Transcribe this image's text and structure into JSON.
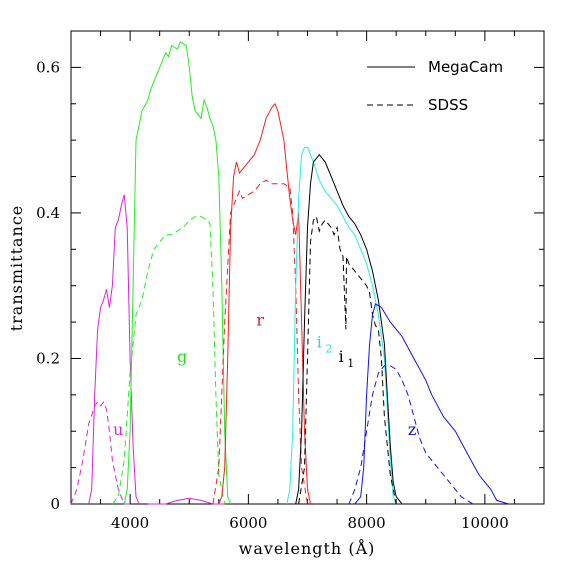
{
  "chart_data": {
    "type": "line",
    "xlabel": "wavelength (Å)",
    "ylabel": "transmittance",
    "xlim": [
      3000,
      11000
    ],
    "ylim": [
      0,
      0.65
    ],
    "xticks": [
      4000,
      6000,
      8000,
      10000
    ],
    "xtick_labels": [
      "4000",
      "6000",
      "8000",
      "10000"
    ],
    "yticks": [
      0,
      0.2,
      0.4,
      0.6
    ],
    "ytick_labels": [
      "0",
      "0.2",
      "0.4",
      "0.6"
    ],
    "grid": false,
    "legend_position": "top-right",
    "legend": [
      {
        "label": "MegaCam",
        "style": "solid"
      },
      {
        "label": "SDSS",
        "style": "dashed"
      }
    ],
    "band_labels": [
      {
        "text": "u",
        "x": 3800,
        "y": 0.095,
        "color": "#cc33cc"
      },
      {
        "text": "g",
        "x": 4880,
        "y": 0.195,
        "color": "#22dd22"
      },
      {
        "text": "r",
        "x": 6200,
        "y": 0.245,
        "color": "#dd2222"
      },
      {
        "text": "i",
        "sub": "2",
        "x": 7200,
        "y": 0.215,
        "color": "#22dddd"
      },
      {
        "text": "i",
        "sub": "1",
        "x": 7570,
        "y": 0.195,
        "color": "#000000"
      },
      {
        "text": "z",
        "x": 8770,
        "y": 0.095,
        "color": "#1111cc"
      }
    ],
    "series": [
      {
        "band": "u",
        "style": "solid",
        "color": "#dd22dd",
        "points": [
          [
            3300,
            0
          ],
          [
            3350,
            0.02
          ],
          [
            3400,
            0.15
          ],
          [
            3450,
            0.24
          ],
          [
            3500,
            0.27
          ],
          [
            3550,
            0.28
          ],
          [
            3600,
            0.295
          ],
          [
            3650,
            0.27
          ],
          [
            3700,
            0.3
          ],
          [
            3750,
            0.38
          ],
          [
            3800,
            0.39
          ],
          [
            3850,
            0.41
          ],
          [
            3900,
            0.425
          ],
          [
            3950,
            0.38
          ],
          [
            4000,
            0.2
          ],
          [
            4050,
            0.08
          ],
          [
            4100,
            0.01
          ],
          [
            4150,
            0
          ]
        ]
      },
      {
        "band": "u",
        "style": "dashed",
        "color": "#dd22dd",
        "points": [
          [
            3000,
            0
          ],
          [
            3100,
            0.02
          ],
          [
            3200,
            0.06
          ],
          [
            3300,
            0.11
          ],
          [
            3400,
            0.135
          ],
          [
            3450,
            0.14
          ],
          [
            3500,
            0.135
          ],
          [
            3550,
            0.14
          ],
          [
            3600,
            0.13
          ],
          [
            3650,
            0.1
          ],
          [
            3700,
            0.06
          ],
          [
            3800,
            0.02
          ],
          [
            3900,
            0
          ],
          [
            4000,
            0
          ]
        ]
      },
      {
        "band": "u",
        "style": "solid",
        "color": "#dd22dd",
        "points": [
          [
            4300,
            0
          ],
          [
            4600,
            0
          ],
          [
            4800,
            0.005
          ],
          [
            5000,
            0.008
          ],
          [
            5200,
            0.005
          ],
          [
            5400,
            0
          ],
          [
            5600,
            0
          ]
        ]
      },
      {
        "band": "g",
        "style": "solid",
        "color": "#22ee22",
        "points": [
          [
            3900,
            0
          ],
          [
            3950,
            0.02
          ],
          [
            4000,
            0.1
          ],
          [
            4050,
            0.3
          ],
          [
            4100,
            0.5
          ],
          [
            4150,
            0.52
          ],
          [
            4200,
            0.54
          ],
          [
            4300,
            0.555
          ],
          [
            4350,
            0.57
          ],
          [
            4400,
            0.58
          ],
          [
            4500,
            0.6
          ],
          [
            4600,
            0.62
          ],
          [
            4650,
            0.615
          ],
          [
            4700,
            0.63
          ],
          [
            4800,
            0.625
          ],
          [
            4850,
            0.635
          ],
          [
            4950,
            0.63
          ],
          [
            5000,
            0.6
          ],
          [
            5050,
            0.56
          ],
          [
            5100,
            0.54
          ],
          [
            5200,
            0.53
          ],
          [
            5250,
            0.555
          ],
          [
            5300,
            0.545
          ],
          [
            5350,
            0.53
          ],
          [
            5400,
            0.52
          ],
          [
            5450,
            0.5
          ],
          [
            5500,
            0.45
          ],
          [
            5550,
            0.3
          ],
          [
            5600,
            0.1
          ],
          [
            5650,
            0.01
          ],
          [
            5700,
            0
          ]
        ]
      },
      {
        "band": "g",
        "style": "dashed",
        "color": "#22ee22",
        "points": [
          [
            3700,
            0
          ],
          [
            3800,
            0.01
          ],
          [
            3900,
            0.06
          ],
          [
            4000,
            0.18
          ],
          [
            4050,
            0.22
          ],
          [
            4100,
            0.26
          ],
          [
            4200,
            0.28
          ],
          [
            4300,
            0.32
          ],
          [
            4400,
            0.35
          ],
          [
            4500,
            0.36
          ],
          [
            4600,
            0.37
          ],
          [
            4700,
            0.37
          ],
          [
            4800,
            0.375
          ],
          [
            4900,
            0.38
          ],
          [
            5000,
            0.39
          ],
          [
            5100,
            0.395
          ],
          [
            5200,
            0.395
          ],
          [
            5300,
            0.39
          ],
          [
            5350,
            0.385
          ],
          [
            5400,
            0.3
          ],
          [
            5450,
            0.15
          ],
          [
            5500,
            0.04
          ],
          [
            5600,
            0
          ]
        ]
      },
      {
        "band": "r",
        "style": "solid",
        "color": "#ee2222",
        "points": [
          [
            5500,
            0
          ],
          [
            5550,
            0.01
          ],
          [
            5600,
            0.05
          ],
          [
            5650,
            0.2
          ],
          [
            5700,
            0.38
          ],
          [
            5750,
            0.45
          ],
          [
            5800,
            0.47
          ],
          [
            5850,
            0.455
          ],
          [
            5900,
            0.46
          ],
          [
            6000,
            0.47
          ],
          [
            6100,
            0.48
          ],
          [
            6200,
            0.5
          ],
          [
            6300,
            0.53
          ],
          [
            6400,
            0.545
          ],
          [
            6450,
            0.55
          ],
          [
            6500,
            0.54
          ],
          [
            6600,
            0.5
          ],
          [
            6650,
            0.46
          ],
          [
            6700,
            0.42
          ],
          [
            6750,
            0.39
          ],
          [
            6800,
            0.37
          ],
          [
            6850,
            0.4
          ],
          [
            6900,
            0.25
          ],
          [
            6950,
            0.1
          ],
          [
            7000,
            0.02
          ],
          [
            7050,
            0
          ]
        ]
      },
      {
        "band": "r",
        "style": "dashed",
        "color": "#ee2222",
        "points": [
          [
            5400,
            0
          ],
          [
            5500,
            0.05
          ],
          [
            5600,
            0.25
          ],
          [
            5700,
            0.4
          ],
          [
            5800,
            0.42
          ],
          [
            5850,
            0.43
          ],
          [
            5900,
            0.42
          ],
          [
            6000,
            0.425
          ],
          [
            6100,
            0.43
          ],
          [
            6200,
            0.44
          ],
          [
            6300,
            0.445
          ],
          [
            6400,
            0.44
          ],
          [
            6500,
            0.44
          ],
          [
            6600,
            0.44
          ],
          [
            6700,
            0.435
          ],
          [
            6750,
            0.4
          ],
          [
            6800,
            0.3
          ],
          [
            6850,
            0.15
          ],
          [
            6900,
            0.05
          ],
          [
            7000,
            0
          ]
        ]
      },
      {
        "band": "i2",
        "style": "solid",
        "color": "#22eeee",
        "points": [
          [
            6650,
            0
          ],
          [
            6700,
            0.02
          ],
          [
            6750,
            0.1
          ],
          [
            6800,
            0.3
          ],
          [
            6850,
            0.42
          ],
          [
            6900,
            0.48
          ],
          [
            6950,
            0.49
          ],
          [
            7000,
            0.49
          ],
          [
            7100,
            0.47
          ],
          [
            7200,
            0.445
          ],
          [
            7300,
            0.43
          ],
          [
            7400,
            0.42
          ],
          [
            7500,
            0.41
          ],
          [
            7600,
            0.395
          ],
          [
            7700,
            0.38
          ],
          [
            7800,
            0.37
          ],
          [
            7900,
            0.35
          ],
          [
            8000,
            0.33
          ],
          [
            8100,
            0.3
          ],
          [
            8200,
            0.26
          ],
          [
            8300,
            0.2
          ],
          [
            8350,
            0.13
          ],
          [
            8400,
            0.06
          ],
          [
            8450,
            0.01
          ],
          [
            8500,
            0
          ]
        ]
      },
      {
        "band": "i1",
        "style": "solid",
        "color": "#000000",
        "points": [
          [
            6800,
            0
          ],
          [
            6850,
            0.02
          ],
          [
            6900,
            0.1
          ],
          [
            6950,
            0.25
          ],
          [
            7000,
            0.38
          ],
          [
            7050,
            0.44
          ],
          [
            7100,
            0.47
          ],
          [
            7150,
            0.475
          ],
          [
            7200,
            0.48
          ],
          [
            7300,
            0.47
          ],
          [
            7400,
            0.45
          ],
          [
            7500,
            0.43
          ],
          [
            7600,
            0.41
          ],
          [
            7700,
            0.395
          ],
          [
            7800,
            0.385
          ],
          [
            7900,
            0.37
          ],
          [
            8000,
            0.35
          ],
          [
            8100,
            0.32
          ],
          [
            8200,
            0.28
          ],
          [
            8300,
            0.22
          ],
          [
            8350,
            0.15
          ],
          [
            8400,
            0.08
          ],
          [
            8450,
            0.03
          ],
          [
            8500,
            0.01
          ],
          [
            8600,
            0
          ]
        ]
      },
      {
        "band": "i1",
        "style": "dashed",
        "color": "#000000",
        "points": [
          [
            6850,
            0
          ],
          [
            6950,
            0.05
          ],
          [
            7000,
            0.2
          ],
          [
            7050,
            0.36
          ],
          [
            7100,
            0.39
          ],
          [
            7150,
            0.395
          ],
          [
            7200,
            0.375
          ],
          [
            7250,
            0.385
          ],
          [
            7300,
            0.39
          ],
          [
            7400,
            0.38
          ],
          [
            7450,
            0.37
          ],
          [
            7500,
            0.38
          ],
          [
            7550,
            0.35
          ],
          [
            7600,
            0.34
          ],
          [
            7650,
            0.24
          ],
          [
            7660,
            0.34
          ],
          [
            7700,
            0.33
          ],
          [
            7800,
            0.32
          ],
          [
            7900,
            0.31
          ],
          [
            8000,
            0.3
          ],
          [
            8050,
            0.29
          ],
          [
            8100,
            0.26
          ],
          [
            8150,
            0.245
          ],
          [
            8200,
            0.24
          ],
          [
            8250,
            0.2
          ],
          [
            8300,
            0.12
          ],
          [
            8400,
            0.04
          ],
          [
            8500,
            0
          ]
        ]
      },
      {
        "band": "z",
        "style": "solid",
        "color": "#1111ee",
        "points": [
          [
            7800,
            0
          ],
          [
            7900,
            0.01
          ],
          [
            7950,
            0.05
          ],
          [
            8000,
            0.15
          ],
          [
            8050,
            0.22
          ],
          [
            8100,
            0.26
          ],
          [
            8150,
            0.275
          ],
          [
            8250,
            0.27
          ],
          [
            8400,
            0.25
          ],
          [
            8600,
            0.23
          ],
          [
            8800,
            0.2
          ],
          [
            9000,
            0.17
          ],
          [
            9100,
            0.15
          ],
          [
            9300,
            0.12
          ],
          [
            9500,
            0.1
          ],
          [
            9700,
            0.07
          ],
          [
            9900,
            0.04
          ],
          [
            10100,
            0.02
          ],
          [
            10200,
            0.005
          ],
          [
            10400,
            0
          ]
        ]
      },
      {
        "band": "z",
        "style": "dashed",
        "color": "#1111ee",
        "points": [
          [
            7700,
            0
          ],
          [
            7800,
            0.02
          ],
          [
            7900,
            0.05
          ],
          [
            8000,
            0.1
          ],
          [
            8100,
            0.15
          ],
          [
            8200,
            0.18
          ],
          [
            8300,
            0.19
          ],
          [
            8400,
            0.19
          ],
          [
            8500,
            0.185
          ],
          [
            8600,
            0.17
          ],
          [
            8700,
            0.15
          ],
          [
            8800,
            0.12
          ],
          [
            8900,
            0.09
          ],
          [
            9000,
            0.07
          ],
          [
            9100,
            0.06
          ],
          [
            9200,
            0.05
          ],
          [
            9300,
            0.04
          ],
          [
            9400,
            0.03
          ],
          [
            9500,
            0.02
          ],
          [
            9600,
            0.01
          ],
          [
            9700,
            0.005
          ],
          [
            9800,
            0
          ]
        ]
      }
    ]
  }
}
